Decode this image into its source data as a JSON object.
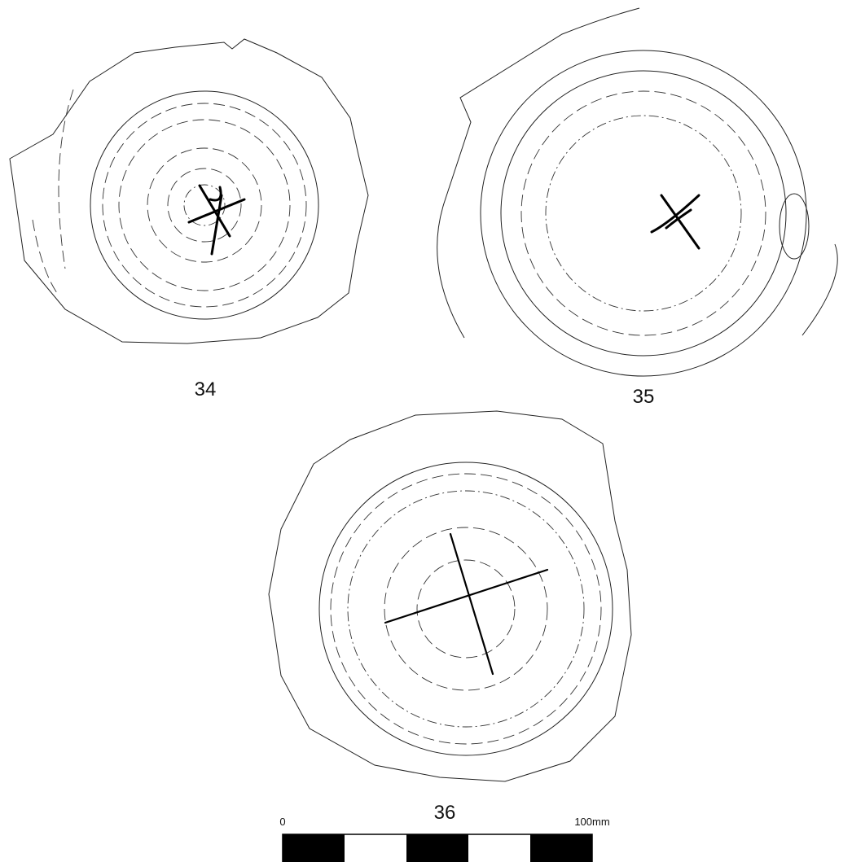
{
  "figures": [
    {
      "label": "34"
    },
    {
      "label": "35"
    },
    {
      "label": "36"
    }
  ],
  "scale_bar": {
    "start_label": "0",
    "end_label": "100mm"
  }
}
